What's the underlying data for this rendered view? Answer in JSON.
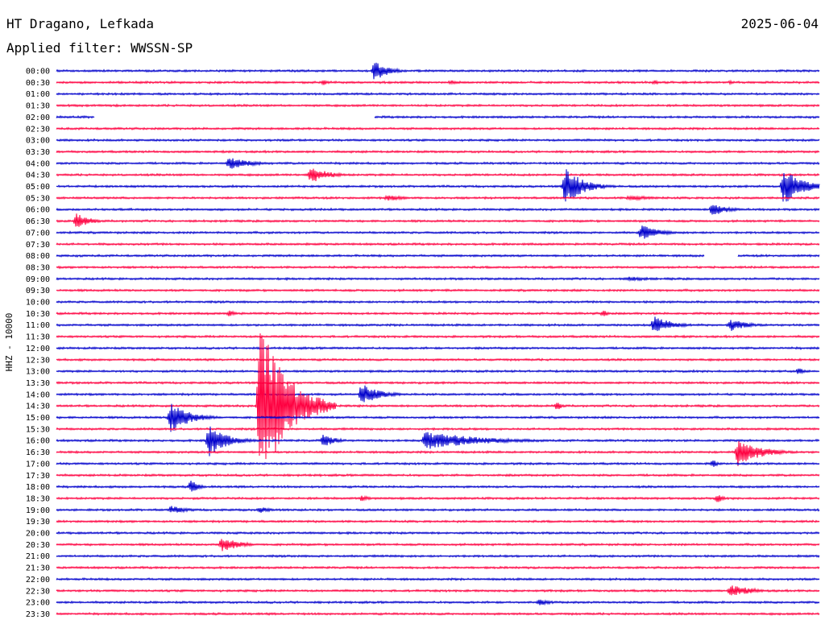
{
  "header": {
    "station": "HT Dragano, Lefkada",
    "date": "2025-06-04",
    "filter": "Applied filter: WWSSN-SP"
  },
  "colors": {
    "odd_trace": "#0000cc",
    "even_trace": "#ff0040",
    "text": "#000000",
    "background": "#ffffff"
  },
  "chart_data": {
    "type": "line",
    "title": "HT Dragano, Lefkada",
    "ylabel": "HHZ - 10000",
    "xlabel": "",
    "row_labels": [
      "00:00",
      "00:30",
      "01:00",
      "01:30",
      "02:00",
      "02:30",
      "03:00",
      "03:30",
      "04:00",
      "04:30",
      "05:00",
      "05:30",
      "06:00",
      "06:30",
      "07:00",
      "07:30",
      "08:00",
      "08:30",
      "09:00",
      "09:30",
      "10:00",
      "10:30",
      "11:00",
      "11:30",
      "12:00",
      "12:30",
      "13:00",
      "13:30",
      "14:00",
      "14:30",
      "15:00",
      "15:30",
      "16:00",
      "16:30",
      "17:00",
      "17:30",
      "18:00",
      "18:30",
      "19:00",
      "19:30",
      "20:00",
      "20:30",
      "21:00",
      "21:30",
      "22:00",
      "22:30",
      "23:00",
      "23:30"
    ],
    "row_minutes": 30,
    "row_colors": [
      "#0000cc",
      "#ff0040"
    ],
    "events": [
      {
        "row": "00:00",
        "minute": 12.5,
        "amplitude": 14,
        "duration": 1.5
      },
      {
        "row": "00:30",
        "minute": 10.5,
        "amplitude": 4,
        "duration": 0.5
      },
      {
        "row": "00:30",
        "minute": 15.5,
        "amplitude": 3,
        "duration": 0.8
      },
      {
        "row": "00:30",
        "minute": 23.5,
        "amplitude": 3,
        "duration": 0.8
      },
      {
        "row": "00:30",
        "minute": 26.5,
        "amplitude": 2.5,
        "duration": 0.6
      },
      {
        "row": "04:00",
        "minute": 6.8,
        "amplitude": 8,
        "duration": 2.5
      },
      {
        "row": "04:30",
        "minute": 10.0,
        "amplitude": 11,
        "duration": 2.0
      },
      {
        "row": "05:00",
        "minute": 20.0,
        "amplitude": 25,
        "duration": 2.0
      },
      {
        "row": "05:00",
        "minute": 28.6,
        "amplitude": 25,
        "duration": 2.0
      },
      {
        "row": "05:30",
        "minute": 13.0,
        "amplitude": 4,
        "duration": 2.0
      },
      {
        "row": "05:30",
        "minute": 22.5,
        "amplitude": 3,
        "duration": 4.0
      },
      {
        "row": "06:00",
        "minute": 25.8,
        "amplitude": 10,
        "duration": 1.5
      },
      {
        "row": "06:30",
        "minute": 0.8,
        "amplitude": 10,
        "duration": 1.5
      },
      {
        "row": "07:00",
        "minute": 23.0,
        "amplitude": 10,
        "duration": 2.0
      },
      {
        "row": "09:00",
        "minute": 22.5,
        "amplitude": 3,
        "duration": 3.0
      },
      {
        "row": "10:30",
        "minute": 6.8,
        "amplitude": 4,
        "duration": 1.0
      },
      {
        "row": "10:30",
        "minute": 21.5,
        "amplitude": 5,
        "duration": 0.6
      },
      {
        "row": "11:00",
        "minute": 23.5,
        "amplitude": 12,
        "duration": 2.0
      },
      {
        "row": "11:00",
        "minute": 26.5,
        "amplitude": 8,
        "duration": 2.0
      },
      {
        "row": "13:00",
        "minute": 29.2,
        "amplitude": 6,
        "duration": 0.5
      },
      {
        "row": "14:00",
        "minute": 12.0,
        "amplitude": 14,
        "duration": 2.0
      },
      {
        "row": "14:30",
        "minute": 8.0,
        "amplitude": 110,
        "duration": 3.0
      },
      {
        "row": "14:30",
        "minute": 19.7,
        "amplitude": 7,
        "duration": 0.5
      },
      {
        "row": "15:00",
        "minute": 4.5,
        "amplitude": 22,
        "duration": 2.0
      },
      {
        "row": "16:00",
        "minute": 6.0,
        "amplitude": 20,
        "duration": 2.0
      },
      {
        "row": "16:00",
        "minute": 10.5,
        "amplitude": 8,
        "duration": 1.5
      },
      {
        "row": "16:00",
        "minute": 14.5,
        "amplitude": 12,
        "duration": 6.0
      },
      {
        "row": "16:30",
        "minute": 26.8,
        "amplitude": 18,
        "duration": 2.5
      },
      {
        "row": "17:00",
        "minute": 25.8,
        "amplitude": 6,
        "duration": 0.5
      },
      {
        "row": "18:00",
        "minute": 5.3,
        "amplitude": 10,
        "duration": 0.8
      },
      {
        "row": "18:30",
        "minute": 12.0,
        "amplitude": 4,
        "duration": 1.0
      },
      {
        "row": "18:30",
        "minute": 26.0,
        "amplitude": 6,
        "duration": 0.6
      },
      {
        "row": "19:00",
        "minute": 4.5,
        "amplitude": 5,
        "duration": 2.0
      },
      {
        "row": "19:00",
        "minute": 8.0,
        "amplitude": 4,
        "duration": 1.5
      },
      {
        "row": "20:30",
        "minute": 6.5,
        "amplitude": 10,
        "duration": 2.0
      },
      {
        "row": "22:30",
        "minute": 26.5,
        "amplitude": 8,
        "duration": 2.5
      },
      {
        "row": "23:00",
        "minute": 19.0,
        "amplitude": 4,
        "duration": 1.5
      }
    ],
    "gaps": [
      {
        "row": "02:00",
        "start_minute": 1.5,
        "end_minute": 12.5
      },
      {
        "row": "08:00",
        "start_minute": 25.5,
        "end_minute": 26.8
      }
    ],
    "grid": false
  }
}
